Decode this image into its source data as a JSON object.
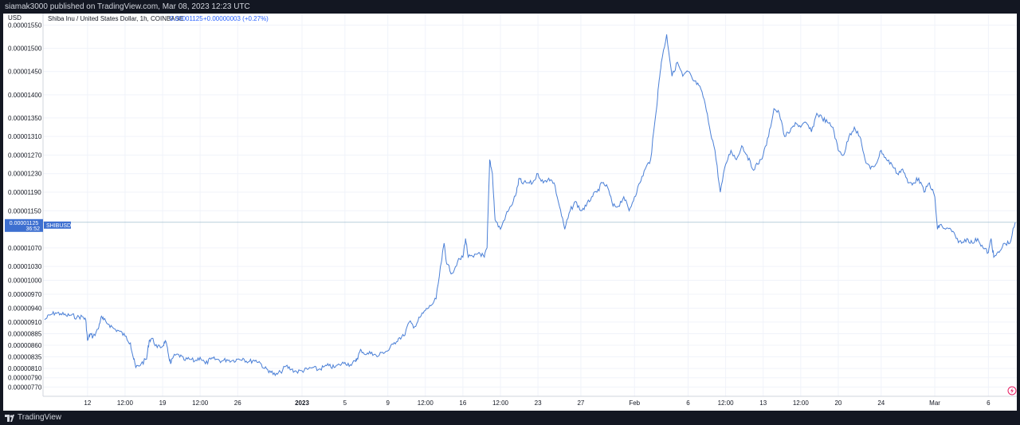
{
  "header": {
    "published": "siamak3000 published on TradingView.com, Mar 08, 2023 12:23 UTC"
  },
  "footer": {
    "brand": "TradingView",
    "logo_icon": "tradingview-logo-icon"
  },
  "colors": {
    "line": "#4a7fd6",
    "badge": "#3d6fd0",
    "grid": "#f0f3fa",
    "axis_text": "#131722"
  },
  "chart_data": {
    "type": "line",
    "title": "Shiba Inu / United States Dollar, 1h, COINBASE",
    "last_price": "0.00001125",
    "change": "+0.00000003 (+0.27%)",
    "ylabel": "USD",
    "symbol_badge": "SHIBUSD",
    "price_badge": "0.00001125",
    "countdown": "36:52",
    "ylim": [
      7.5e-06,
      1.575e-05
    ],
    "y_ticks": [
      "0.00001550",
      "0.00001500",
      "0.00001450",
      "0.00001400",
      "0.00001350",
      "0.00001310",
      "0.00001270",
      "0.00001230",
      "0.00001190",
      "0.00001150",
      "0.00001070",
      "0.00001030",
      "0.00001000",
      "0.00000970",
      "0.00000940",
      "0.00000910",
      "0.00000885",
      "0.00000860",
      "0.00000835",
      "0.00000810",
      "0.00000790",
      "0.00000770"
    ],
    "x_ticks": [
      "12",
      "12:00",
      "19",
      "12:00",
      "26",
      "2023",
      "5",
      "9",
      "12:00",
      "16",
      "12:00",
      "23",
      "27",
      "Feb",
      "6",
      "12:00",
      "13",
      "12:00",
      "20",
      "24",
      "Mar",
      "6"
    ],
    "grid": true,
    "series": [
      {
        "values": [
          [
            "2022-12-08 00:00",
            9.15e-06
          ],
          [
            "2022-12-08 12:00",
            9.25e-06
          ],
          [
            "2022-12-09 00:00",
            9.3e-06
          ],
          [
            "2022-12-09 12:00",
            9.28e-06
          ],
          [
            "2022-12-10 00:00",
            9.24e-06
          ],
          [
            "2022-12-10 12:00",
            9.25e-06
          ],
          [
            "2022-12-11 00:00",
            9.2e-06
          ],
          [
            "2022-12-11 12:00",
            9.22e-06
          ],
          [
            "2022-12-11 20:00",
            9.15e-06
          ],
          [
            "2022-12-12 00:00",
            8.7e-06
          ],
          [
            "2022-12-12 06:00",
            8.85e-06
          ],
          [
            "2022-12-12 12:00",
            8.78e-06
          ],
          [
            "2022-12-13 00:00",
            8.95e-06
          ],
          [
            "2022-12-13 06:00",
            9.2e-06
          ],
          [
            "2022-12-13 12:00",
            9.15e-06
          ],
          [
            "2022-12-14 00:00",
            9.05e-06
          ],
          [
            "2022-12-14 12:00",
            8.95e-06
          ],
          [
            "2022-12-15 00:00",
            8.9e-06
          ],
          [
            "2022-12-15 12:00",
            8.8e-06
          ],
          [
            "2022-12-16 00:00",
            8.65e-06
          ],
          [
            "2022-12-16 06:00",
            8.35e-06
          ],
          [
            "2022-12-16 12:00",
            8.12e-06
          ],
          [
            "2022-12-17 00:00",
            8.2e-06
          ],
          [
            "2022-12-17 12:00",
            8.3e-06
          ],
          [
            "2022-12-17 18:00",
            8.7e-06
          ],
          [
            "2022-12-18 00:00",
            8.75e-06
          ],
          [
            "2022-12-18 12:00",
            8.55e-06
          ],
          [
            "2022-12-19 00:00",
            8.58e-06
          ],
          [
            "2022-12-19 06:00",
            8.7e-06
          ],
          [
            "2022-12-19 12:00",
            8.45e-06
          ],
          [
            "2022-12-19 18:00",
            8.2e-06
          ],
          [
            "2022-12-20 00:00",
            8.35e-06
          ],
          [
            "2022-12-20 12:00",
            8.4e-06
          ],
          [
            "2022-12-21 00:00",
            8.28e-06
          ],
          [
            "2022-12-21 12:00",
            8.3e-06
          ],
          [
            "2022-12-22 00:00",
            8.26e-06
          ],
          [
            "2022-12-22 12:00",
            8.34e-06
          ],
          [
            "2022-12-23 00:00",
            8.2e-06
          ],
          [
            "2022-12-23 12:00",
            8.3e-06
          ],
          [
            "2022-12-24 00:00",
            8.3e-06
          ],
          [
            "2022-12-24 12:00",
            8.26e-06
          ],
          [
            "2022-12-25 00:00",
            8.29e-06
          ],
          [
            "2022-12-25 12:00",
            8.27e-06
          ],
          [
            "2022-12-26 00:00",
            8.3e-06
          ],
          [
            "2022-12-26 12:00",
            8.32e-06
          ],
          [
            "2022-12-27 00:00",
            8.24e-06
          ],
          [
            "2022-12-27 12:00",
            8.28e-06
          ],
          [
            "2022-12-28 00:00",
            8.25e-06
          ],
          [
            "2022-12-28 12:00",
            8.1e-06
          ],
          [
            "2022-12-29 00:00",
            8.05e-06
          ],
          [
            "2022-12-29 12:00",
            7.95e-06
          ],
          [
            "2022-12-30 00:00",
            8.02e-06
          ],
          [
            "2022-12-30 12:00",
            8.15e-06
          ],
          [
            "2022-12-31 00:00",
            8.08e-06
          ],
          [
            "2022-12-31 12:00",
            8.03e-06
          ],
          [
            "2023-01-01 00:00",
            8.05e-06
          ],
          [
            "2023-01-01 12:00",
            8.08e-06
          ],
          [
            "2023-01-02 00:00",
            8.12e-06
          ],
          [
            "2023-01-02 12:00",
            8.07e-06
          ],
          [
            "2023-01-03 00:00",
            8.13e-06
          ],
          [
            "2023-01-03 12:00",
            8.16e-06
          ],
          [
            "2023-01-04 00:00",
            8.12e-06
          ],
          [
            "2023-01-04 12:00",
            8.18e-06
          ],
          [
            "2023-01-05 00:00",
            8.23e-06
          ],
          [
            "2023-01-05 12:00",
            8.18e-06
          ],
          [
            "2023-01-06 00:00",
            8.25e-06
          ],
          [
            "2023-01-06 06:00",
            8.38e-06
          ],
          [
            "2023-01-06 12:00",
            8.5e-06
          ],
          [
            "2023-01-07 00:00",
            8.4e-06
          ],
          [
            "2023-01-07 12:00",
            8.45e-06
          ],
          [
            "2023-01-08 00:00",
            8.35e-06
          ],
          [
            "2023-01-08 12:00",
            8.45e-06
          ],
          [
            "2023-01-09 00:00",
            8.48e-06
          ],
          [
            "2023-01-09 12:00",
            8.62e-06
          ],
          [
            "2023-01-10 00:00",
            8.75e-06
          ],
          [
            "2023-01-10 12:00",
            8.8e-06
          ],
          [
            "2023-01-11 00:00",
            9.1e-06
          ],
          [
            "2023-01-11 12:00",
            9e-06
          ],
          [
            "2023-01-12 00:00",
            9.2e-06
          ],
          [
            "2023-01-12 12:00",
            9.35e-06
          ],
          [
            "2023-01-13 00:00",
            9.45e-06
          ],
          [
            "2023-01-13 12:00",
            9.6e-06
          ],
          [
            "2023-01-14 00:00",
            1.04e-05
          ],
          [
            "2023-01-14 06:00",
            1.08e-05
          ],
          [
            "2023-01-14 12:00",
            1.035e-05
          ],
          [
            "2023-01-15 00:00",
            1.015e-05
          ],
          [
            "2023-01-15 12:00",
            1.04e-05
          ],
          [
            "2023-01-16 00:00",
            1.05e-05
          ],
          [
            "2023-01-16 06:00",
            1.09e-05
          ],
          [
            "2023-01-16 12:00",
            1.05e-05
          ],
          [
            "2023-01-17 00:00",
            1.05e-05
          ],
          [
            "2023-01-17 12:00",
            1.06e-05
          ],
          [
            "2023-01-18 00:00",
            1.05e-05
          ],
          [
            "2023-01-18 06:00",
            1.07e-05
          ],
          [
            "2023-01-18 12:00",
            1.26e-05
          ],
          [
            "2023-01-18 18:00",
            1.23e-05
          ],
          [
            "2023-01-19 00:00",
            1.13e-05
          ],
          [
            "2023-01-19 12:00",
            1.11e-05
          ],
          [
            "2023-01-20 00:00",
            1.14e-05
          ],
          [
            "2023-01-20 12:00",
            1.16e-05
          ],
          [
            "2023-01-21 00:00",
            1.19e-05
          ],
          [
            "2023-01-21 06:00",
            1.22e-05
          ],
          [
            "2023-01-21 12:00",
            1.21e-05
          ],
          [
            "2023-01-22 00:00",
            1.21e-05
          ],
          [
            "2023-01-22 12:00",
            1.21e-05
          ],
          [
            "2023-01-23 00:00",
            1.23e-05
          ],
          [
            "2023-01-23 12:00",
            1.21e-05
          ],
          [
            "2023-01-24 00:00",
            1.22e-05
          ],
          [
            "2023-01-24 12:00",
            1.21e-05
          ],
          [
            "2023-01-25 00:00",
            1.16e-05
          ],
          [
            "2023-01-25 12:00",
            1.11e-05
          ],
          [
            "2023-01-26 00:00",
            1.15e-05
          ],
          [
            "2023-01-26 12:00",
            1.17e-05
          ],
          [
            "2023-01-27 00:00",
            1.15e-05
          ],
          [
            "2023-01-27 12:00",
            1.16e-05
          ],
          [
            "2023-01-28 00:00",
            1.18e-05
          ],
          [
            "2023-01-28 12:00",
            1.19e-05
          ],
          [
            "2023-01-29 00:00",
            1.21e-05
          ],
          [
            "2023-01-29 12:00",
            1.2e-05
          ],
          [
            "2023-01-30 00:00",
            1.16e-05
          ],
          [
            "2023-01-30 12:00",
            1.16e-05
          ],
          [
            "2023-01-31 00:00",
            1.18e-05
          ],
          [
            "2023-01-31 12:00",
            1.15e-05
          ],
          [
            "2023-02-01 00:00",
            1.18e-05
          ],
          [
            "2023-02-01 12:00",
            1.21e-05
          ],
          [
            "2023-02-02 00:00",
            1.24e-05
          ],
          [
            "2023-02-02 12:00",
            1.26e-05
          ],
          [
            "2023-02-03 00:00",
            1.36e-05
          ],
          [
            "2023-02-03 06:00",
            1.42e-05
          ],
          [
            "2023-02-03 12:00",
            1.47e-05
          ],
          [
            "2023-02-04 00:00",
            1.53e-05
          ],
          [
            "2023-02-04 12:00",
            1.44e-05
          ],
          [
            "2023-02-05 00:00",
            1.47e-05
          ],
          [
            "2023-02-05 12:00",
            1.44e-05
          ],
          [
            "2023-02-06 00:00",
            1.45e-05
          ],
          [
            "2023-02-06 12:00",
            1.43e-05
          ],
          [
            "2023-02-07 00:00",
            1.42e-05
          ],
          [
            "2023-02-07 12:00",
            1.39e-05
          ],
          [
            "2023-02-08 00:00",
            1.33e-05
          ],
          [
            "2023-02-08 12:00",
            1.28e-05
          ],
          [
            "2023-02-09 00:00",
            1.19e-05
          ],
          [
            "2023-02-09 12:00",
            1.25e-05
          ],
          [
            "2023-02-10 00:00",
            1.28e-05
          ],
          [
            "2023-02-10 12:00",
            1.26e-05
          ],
          [
            "2023-02-11 00:00",
            1.29e-05
          ],
          [
            "2023-02-11 12:00",
            1.27e-05
          ],
          [
            "2023-02-12 00:00",
            1.24e-05
          ],
          [
            "2023-02-12 12:00",
            1.25e-05
          ],
          [
            "2023-02-13 00:00",
            1.27e-05
          ],
          [
            "2023-02-13 12:00",
            1.31e-05
          ],
          [
            "2023-02-14 00:00",
            1.37e-05
          ],
          [
            "2023-02-14 12:00",
            1.36e-05
          ],
          [
            "2023-02-15 00:00",
            1.31e-05
          ],
          [
            "2023-02-15 12:00",
            1.32e-05
          ],
          [
            "2023-02-16 00:00",
            1.34e-05
          ],
          [
            "2023-02-16 12:00",
            1.33e-05
          ],
          [
            "2023-02-17 00:00",
            1.34e-05
          ],
          [
            "2023-02-17 12:00",
            1.32e-05
          ],
          [
            "2023-02-18 00:00",
            1.36e-05
          ],
          [
            "2023-02-18 12:00",
            1.35e-05
          ],
          [
            "2023-02-19 00:00",
            1.34e-05
          ],
          [
            "2023-02-19 12:00",
            1.33e-05
          ],
          [
            "2023-02-20 00:00",
            1.28e-05
          ],
          [
            "2023-02-20 12:00",
            1.27e-05
          ],
          [
            "2023-02-21 00:00",
            1.31e-05
          ],
          [
            "2023-02-21 12:00",
            1.33e-05
          ],
          [
            "2023-02-22 00:00",
            1.31e-05
          ],
          [
            "2023-02-22 12:00",
            1.26e-05
          ],
          [
            "2023-02-23 00:00",
            1.24e-05
          ],
          [
            "2023-02-23 12:00",
            1.25e-05
          ],
          [
            "2023-02-24 00:00",
            1.28e-05
          ],
          [
            "2023-02-24 12:00",
            1.26e-05
          ],
          [
            "2023-02-25 00:00",
            1.25e-05
          ],
          [
            "2023-02-25 12:00",
            1.23e-05
          ],
          [
            "2023-02-26 00:00",
            1.24e-05
          ],
          [
            "2023-02-26 12:00",
            1.21e-05
          ],
          [
            "2023-02-27 00:00",
            1.21e-05
          ],
          [
            "2023-02-27 12:00",
            1.22e-05
          ],
          [
            "2023-02-28 00:00",
            1.19e-05
          ],
          [
            "2023-02-28 12:00",
            1.21e-05
          ],
          [
            "2023-03-01 00:00",
            1.18e-05
          ],
          [
            "2023-03-01 06:00",
            1.11e-05
          ],
          [
            "2023-03-01 12:00",
            1.12e-05
          ],
          [
            "2023-03-02 00:00",
            1.11e-05
          ],
          [
            "2023-03-02 12:00",
            1.11e-05
          ],
          [
            "2023-03-03 00:00",
            1.09e-05
          ],
          [
            "2023-03-03 12:00",
            1.08e-05
          ],
          [
            "2023-03-04 00:00",
            1.09e-05
          ],
          [
            "2023-03-04 12:00",
            1.08e-05
          ],
          [
            "2023-03-05 00:00",
            1.09e-05
          ],
          [
            "2023-03-05 12:00",
            1.07e-05
          ],
          [
            "2023-03-06 00:00",
            1.06e-05
          ],
          [
            "2023-03-06 06:00",
            1.09e-05
          ],
          [
            "2023-03-06 12:00",
            1.05e-05
          ],
          [
            "2023-03-07 00:00",
            1.06e-05
          ],
          [
            "2023-03-07 12:00",
            1.08e-05
          ],
          [
            "2023-03-08 00:00",
            1.08e-05
          ],
          [
            "2023-03-08 12:00",
            1.125e-05
          ]
        ]
      }
    ]
  }
}
